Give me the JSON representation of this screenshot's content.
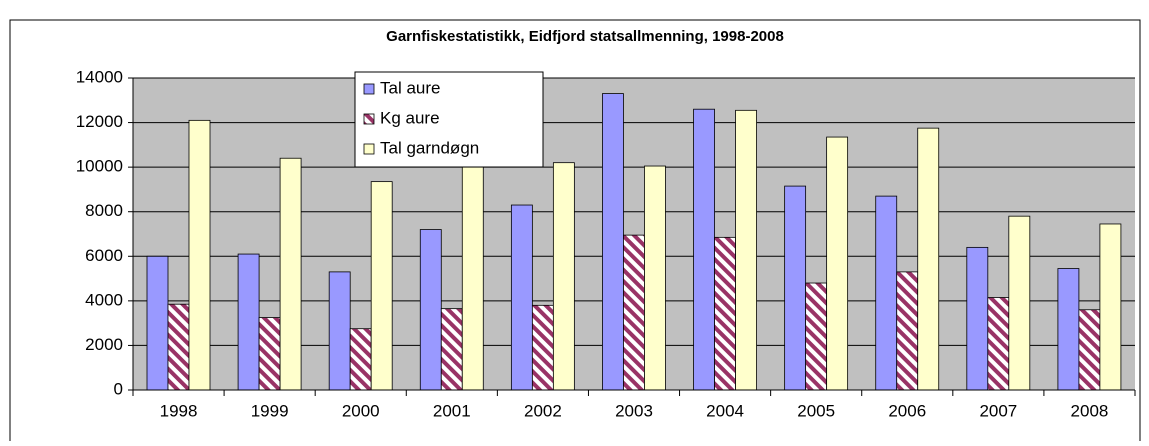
{
  "chart_data": {
    "type": "bar",
    "title": "Garnfiskestatistikk, Eidfjord statsallmenning, 1998-2008",
    "categories": [
      "1998",
      "1999",
      "2000",
      "2001",
      "2002",
      "2003",
      "2004",
      "2005",
      "2006",
      "2007",
      "2008"
    ],
    "series": [
      {
        "name": "Tal aure",
        "color": "#9999ff",
        "values": [
          6000,
          6100,
          5300,
          7200,
          8300,
          13300,
          12600,
          9150,
          8700,
          6400,
          5450
        ]
      },
      {
        "name": "Kg aure",
        "color": "#993366",
        "values": [
          3850,
          3250,
          2750,
          3650,
          3800,
          6950,
          6850,
          4800,
          5300,
          4150,
          3600
        ]
      },
      {
        "name": "Tal garndøgn",
        "color": "#ffffcc",
        "values": [
          12100,
          10400,
          9350,
          10000,
          10200,
          10050,
          12550,
          11350,
          11750,
          7800,
          7450
        ]
      }
    ],
    "ylim": [
      0,
      14000
    ],
    "yticks": [
      0,
      2000,
      4000,
      6000,
      8000,
      10000,
      12000,
      14000
    ],
    "grid": true
  }
}
